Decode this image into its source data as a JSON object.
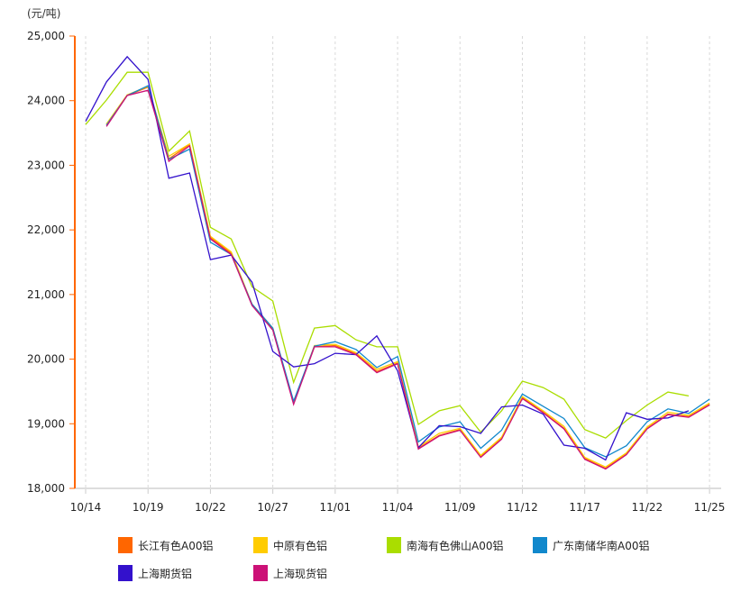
{
  "chart_data": {
    "type": "line",
    "ylabel": "(元/吨)",
    "ylim": [
      18000,
      25000
    ],
    "yticks": [
      "25,000",
      "24,000",
      "23,000",
      "22,000",
      "21,000",
      "20,000",
      "19,000",
      "18,000"
    ],
    "ytick_values": [
      25000,
      24000,
      23000,
      22000,
      21000,
      20000,
      19000,
      18000
    ],
    "x_tick_labels": [
      "10/14",
      "10/19",
      "10/22",
      "10/27",
      "11/01",
      "11/04",
      "11/09",
      "11/12",
      "11/17",
      "11/22",
      "11/25"
    ],
    "x_tick_every": 3,
    "n_points": 31,
    "grid": "vertical dashed",
    "legend": "bottom",
    "series": [
      {
        "name": "长江有色A00铝",
        "color": "#FF6600",
        "values": [
          null,
          23630,
          24080,
          24210,
          23100,
          23320,
          21880,
          21640,
          20840,
          20470,
          19320,
          20190,
          20210,
          20080,
          19810,
          19940,
          18620,
          18820,
          18910,
          18490,
          18770,
          19400,
          19180,
          18930,
          18460,
          18310,
          18530,
          18930,
          19150,
          19110,
          19300
        ]
      },
      {
        "name": "中原有色铝",
        "color": "#FFCC00",
        "values": [
          null,
          23640,
          24090,
          24220,
          23140,
          23330,
          21900,
          21660,
          20850,
          20480,
          19330,
          20210,
          20230,
          20100,
          19840,
          19960,
          18640,
          18850,
          18930,
          18510,
          18790,
          19420,
          19200,
          18960,
          18480,
          18330,
          18550,
          18950,
          19180,
          19130,
          19320
        ]
      },
      {
        "name": "南海有色佛山A00铝",
        "color": "#AADD00",
        "values": [
          23630,
          24010,
          24440,
          24440,
          23220,
          23530,
          22040,
          21860,
          21120,
          20900,
          19640,
          20480,
          20520,
          20300,
          20190,
          20190,
          18990,
          19200,
          19280,
          18870,
          19200,
          19660,
          19560,
          19380,
          18910,
          18780,
          19050,
          19290,
          19490,
          19430,
          null
        ]
      },
      {
        "name": "广东南储华南A00铝",
        "color": "#1188CC",
        "values": [
          null,
          23620,
          24080,
          24230,
          23090,
          23250,
          21810,
          21620,
          20850,
          20480,
          19350,
          20200,
          20270,
          20150,
          19870,
          20040,
          18720,
          18950,
          19030,
          18620,
          18900,
          19460,
          19270,
          19080,
          18630,
          18490,
          18660,
          19030,
          19230,
          19160,
          19380
        ]
      },
      {
        "name": "上海期货铝",
        "color": "#3311CC",
        "values": [
          23680,
          24290,
          24680,
          24330,
          22800,
          22880,
          21540,
          21610,
          21190,
          20120,
          19880,
          19930,
          20090,
          20070,
          20360,
          19820,
          18630,
          18970,
          18955,
          18850,
          19260,
          19290,
          19150,
          18670,
          18620,
          18440,
          19170,
          19070,
          19090,
          19200,
          null
        ]
      },
      {
        "name": "上海现货铝",
        "color": "#CC1177",
        "values": [
          null,
          23600,
          24080,
          24160,
          23060,
          23300,
          21860,
          21620,
          20830,
          20450,
          19300,
          20190,
          20190,
          20070,
          19790,
          19930,
          18610,
          18810,
          18900,
          18480,
          18760,
          19390,
          19170,
          18920,
          18450,
          18300,
          18520,
          18920,
          19140,
          19100,
          19290
        ]
      }
    ],
    "axis_color": "#FF6600"
  }
}
